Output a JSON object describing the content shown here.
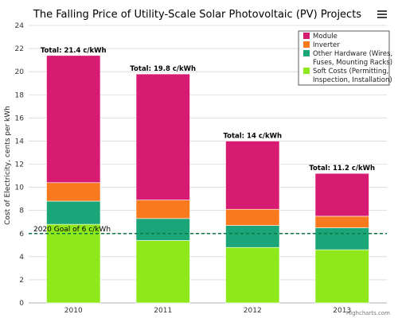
{
  "colors": {
    "soft": "#8fe81a",
    "other": "#1aa678",
    "inverter": "#f97a1e",
    "module": "#d81b72",
    "goal_line": "#0b7a43",
    "grid": "#d8d8d8",
    "menu_icon": "#444444"
  },
  "menu_icon": "hamburger-menu-icon",
  "credits": "Highcharts.com",
  "chart_data": {
    "type": "bar",
    "stacked": true,
    "title": "The Falling Price of Utility-Scale Solar Photovoltaic (PV) Projects",
    "xlabel": "",
    "ylabel": "Cost of Electricity, cents per kWh",
    "ylim": [
      0,
      24
    ],
    "ytick_step": 2,
    "grid": true,
    "legend_position": "top-right",
    "categories": [
      "2010",
      "2011",
      "2012",
      "2013"
    ],
    "series": [
      {
        "name": "Soft Costs (Permitting, Inspection, Installation)",
        "color_key": "soft",
        "values": [
          6.8,
          5.4,
          4.8,
          4.6
        ]
      },
      {
        "name": "Other Hardware (Wires, Fuses, Mounting Racks)",
        "color_key": "other",
        "values": [
          2.0,
          1.9,
          1.9,
          1.9
        ]
      },
      {
        "name": "Inverter",
        "color_key": "inverter",
        "values": [
          1.6,
          1.6,
          1.4,
          1.0
        ]
      },
      {
        "name": "Module",
        "color_key": "module",
        "values": [
          11.0,
          10.9,
          5.9,
          3.7
        ]
      }
    ],
    "legend_order": [
      "Module",
      "Inverter",
      "Other Hardware (Wires, Fuses, Mounting Racks)",
      "Soft Costs (Permitting, Inspection, Installation)"
    ],
    "totals": [
      "Total: 21.4 c/kWh",
      "Total: 19.8 c/kWh",
      "Total: 14 c/kWh",
      "Total: 11.2 c/kWh"
    ],
    "goal": {
      "value": 6,
      "label": "2020 Goal of 6 c/kWh"
    }
  }
}
